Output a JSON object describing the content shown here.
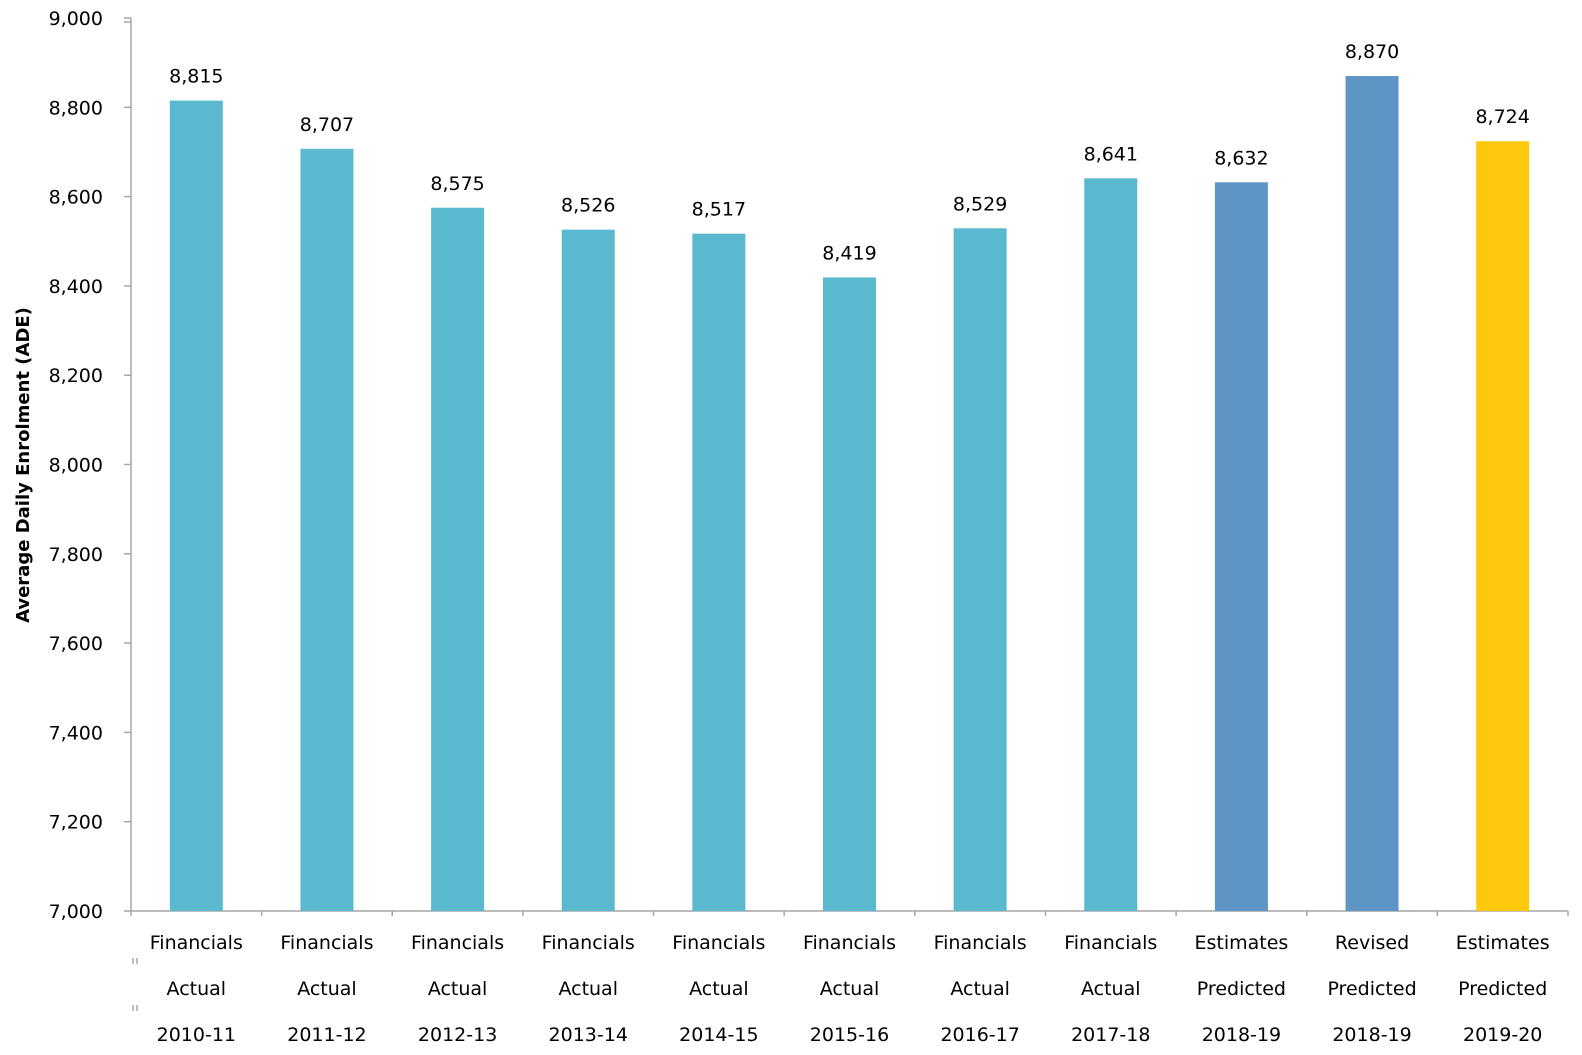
{
  "chart_data": {
    "type": "bar",
    "ylabel": "Average Daily Enrolment  (ADE)",
    "ylim": [
      7000,
      9000
    ],
    "yticks": [
      7000,
      7200,
      7400,
      7600,
      7800,
      8000,
      8200,
      8400,
      8600,
      8800,
      9000
    ],
    "ytick_labels": [
      "7,000",
      "7,200",
      "7,400",
      "7,600",
      "7,800",
      "8,000",
      "8,200",
      "8,400",
      "8,600",
      "8,800",
      "9,000"
    ],
    "grid": false,
    "legend": "none",
    "categories": [
      [
        "Financials",
        "Actual",
        "2010-11"
      ],
      [
        "Financials",
        "Actual",
        "2011-12"
      ],
      [
        "Financials",
        "Actual",
        "2012-13"
      ],
      [
        "Financials",
        "Actual",
        "2013-14"
      ],
      [
        "Financials",
        "Actual",
        "2014-15"
      ],
      [
        "Financials",
        "Actual",
        "2015-16"
      ],
      [
        "Financials",
        "Actual",
        "2016-17"
      ],
      [
        "Financials",
        "Actual",
        "2017-18"
      ],
      [
        "Estimates",
        "Predicted",
        "2018-19"
      ],
      [
        "Revised",
        "Predicted",
        "2018-19"
      ],
      [
        "Estimates",
        "Predicted",
        "2019-20"
      ]
    ],
    "values": [
      8815,
      8707,
      8575,
      8526,
      8517,
      8419,
      8529,
      8641,
      8632,
      8870,
      8724
    ],
    "value_labels": [
      "8,815",
      "8,707",
      "8,575",
      "8,526",
      "8,517",
      "8,419",
      "8,529",
      "8,641",
      "8,632",
      "8,870",
      "8,724"
    ],
    "bar_colors": [
      "#5ab9cf",
      "#5ab9cf",
      "#5ab9cf",
      "#5ab9cf",
      "#5ab9cf",
      "#5ab9cf",
      "#5ab9cf",
      "#5ab9cf",
      "#5f95c5",
      "#5f95c5",
      "#fdc90a"
    ],
    "axis_color": "#a6a6a6"
  }
}
